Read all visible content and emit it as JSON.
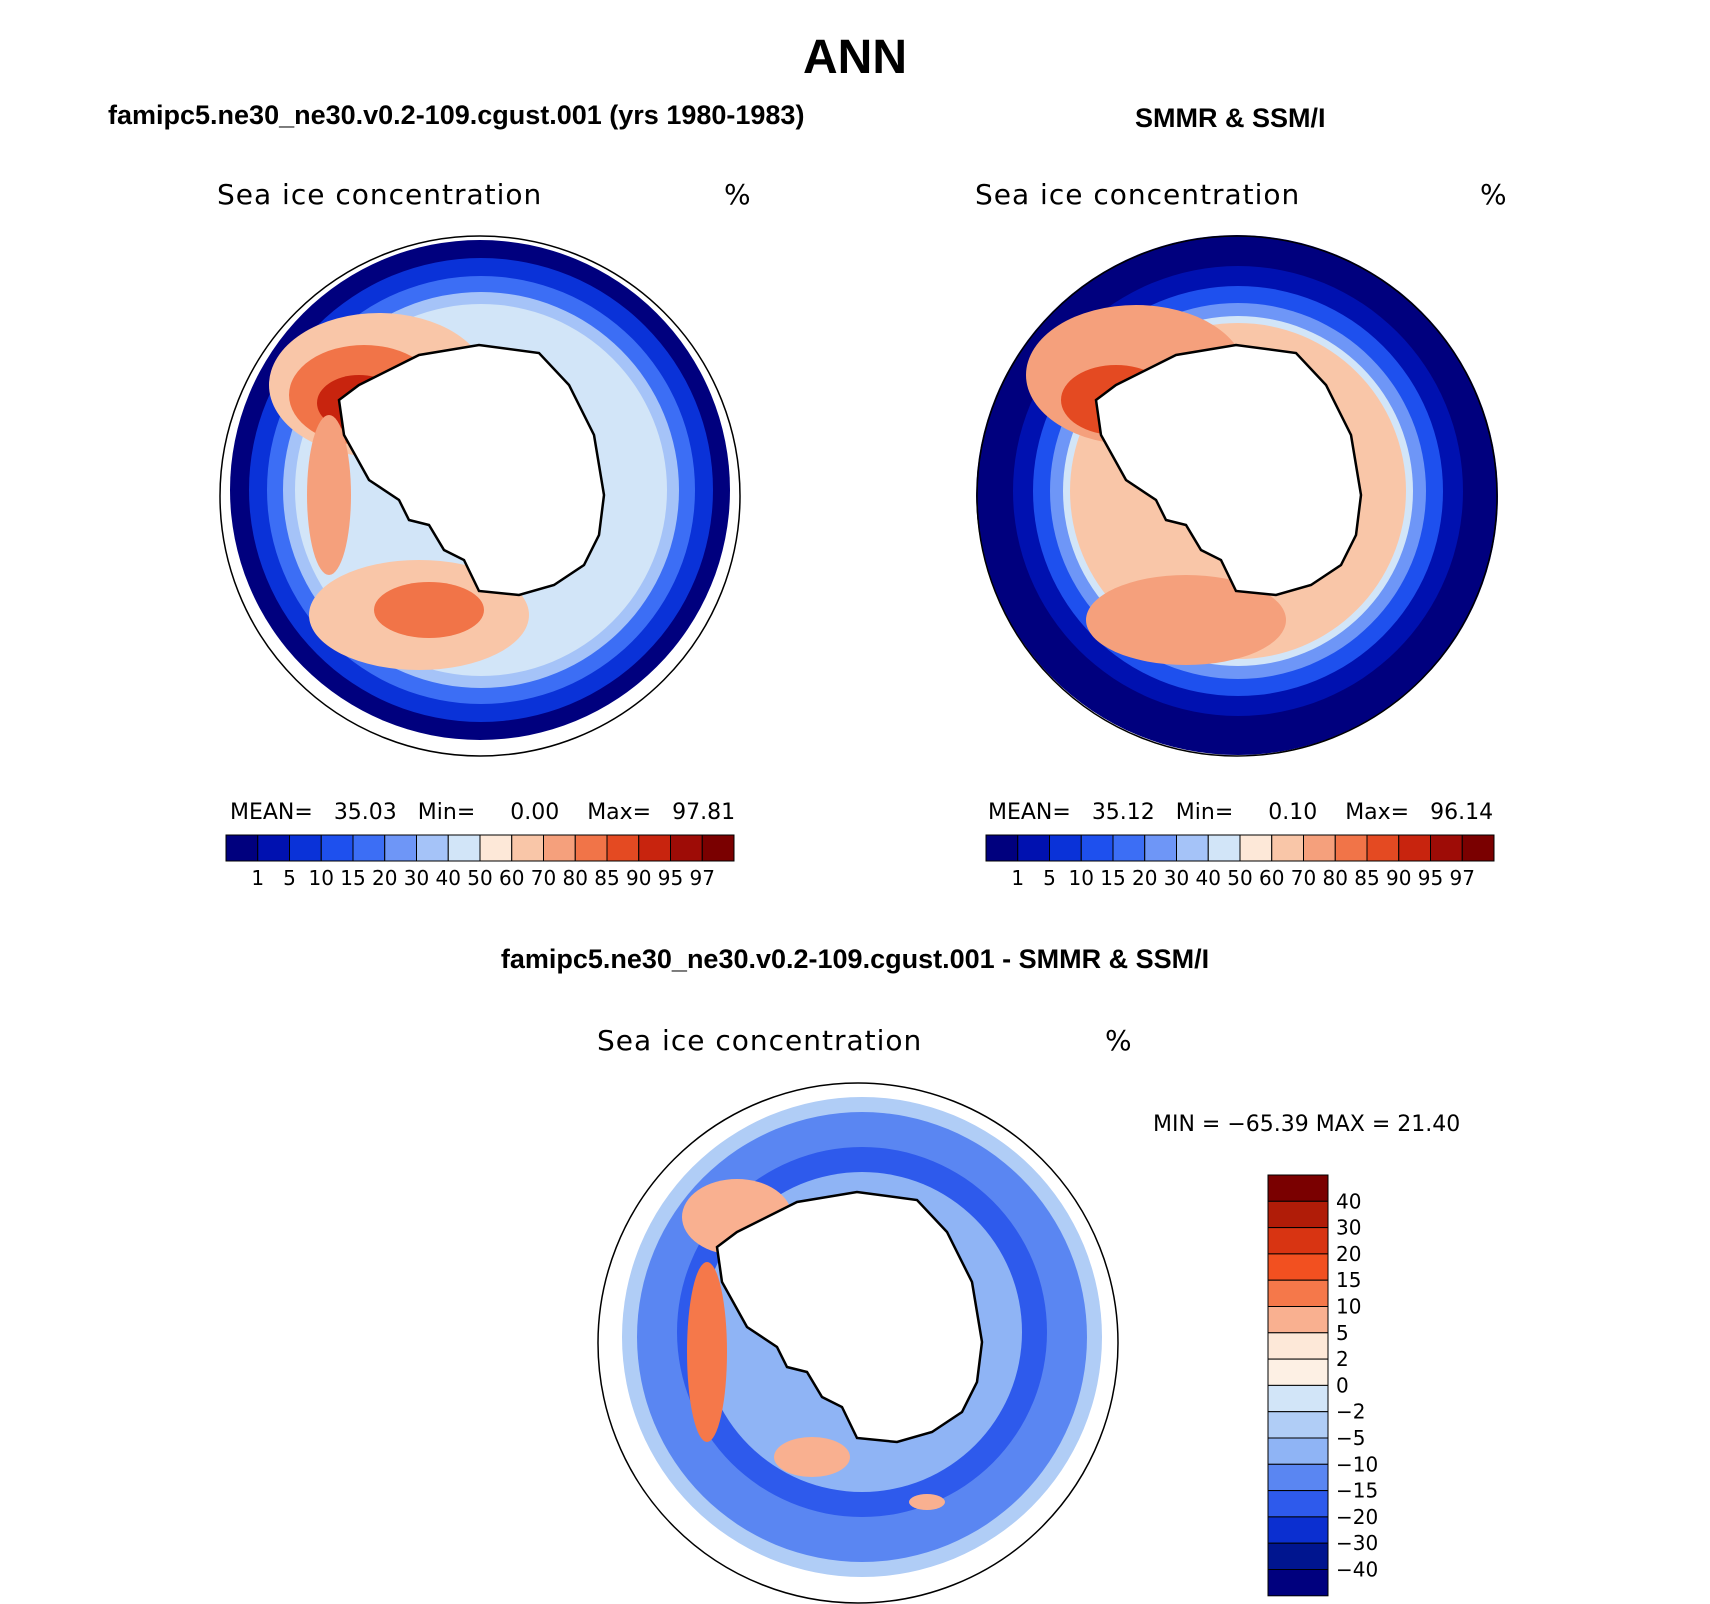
{
  "main_title": "ANN",
  "panels": {
    "model": {
      "title": "famipc5.ne30_ne30.v0.2-109.cgust.001 (yrs 1980-1983)",
      "variable": "Sea ice concentration",
      "units": "%",
      "stats": {
        "mean_label": "MEAN=",
        "mean": "35.03",
        "min_label": "Min=",
        "min": "0.00",
        "max_label": "Max=",
        "max": "97.81"
      }
    },
    "obs": {
      "title": "SMMR & SSM/I",
      "variable": "Sea ice concentration",
      "units": "%",
      "stats": {
        "mean_label": "MEAN=",
        "mean": "35.12",
        "min_label": "Min=",
        "min": "0.10",
        "max_label": "Max=",
        "max": "96.14"
      }
    },
    "diff": {
      "title": "famipc5.ne30_ne30.v0.2-109.cgust.001 - SMMR & SSM/I",
      "variable": "Sea ice concentration",
      "units": "%",
      "minmax": "MIN = −65.39 MAX =   21.40"
    }
  },
  "colorbar_abs": {
    "labels": [
      "1",
      "5",
      "10",
      "15",
      "20",
      "30",
      "40",
      "50",
      "60",
      "70",
      "80",
      "85",
      "90",
      "95",
      "97"
    ],
    "colors": [
      "#00007e",
      "#0011b0",
      "#0a32d8",
      "#1e50ee",
      "#3c6ef5",
      "#6e96f7",
      "#a5c3f8",
      "#d2e5f8",
      "#fde8d8",
      "#f9c6a8",
      "#f5a07c",
      "#f17448",
      "#e44a22",
      "#c8240e",
      "#9e0c06",
      "#7a0000"
    ]
  },
  "colorbar_diff": {
    "labels": [
      "40",
      "30",
      "20",
      "15",
      "10",
      "5",
      "2",
      "0",
      "−2",
      "−5",
      "−10",
      "−15",
      "−20",
      "−30",
      "−40"
    ],
    "colors": [
      "#7a0000",
      "#b01c08",
      "#d83412",
      "#f25020",
      "#f5784a",
      "#f9b090",
      "#fde8d8",
      "#fdf0e4",
      "#d2e5f8",
      "#b0cdf6",
      "#8fb4f5",
      "#5a86f2",
      "#2e5aec",
      "#0b2fd0",
      "#00158f",
      "#00007e"
    ]
  },
  "map_fill_colors": {
    "ocean_low": "#00007e",
    "ice_mid": "#6e96f7",
    "ice_high": "#f17448",
    "ice_max": "#9e0c06",
    "land": "#ffffff",
    "diff_neg": "#3c6ef5",
    "diff_pos": "#f5784a"
  }
}
